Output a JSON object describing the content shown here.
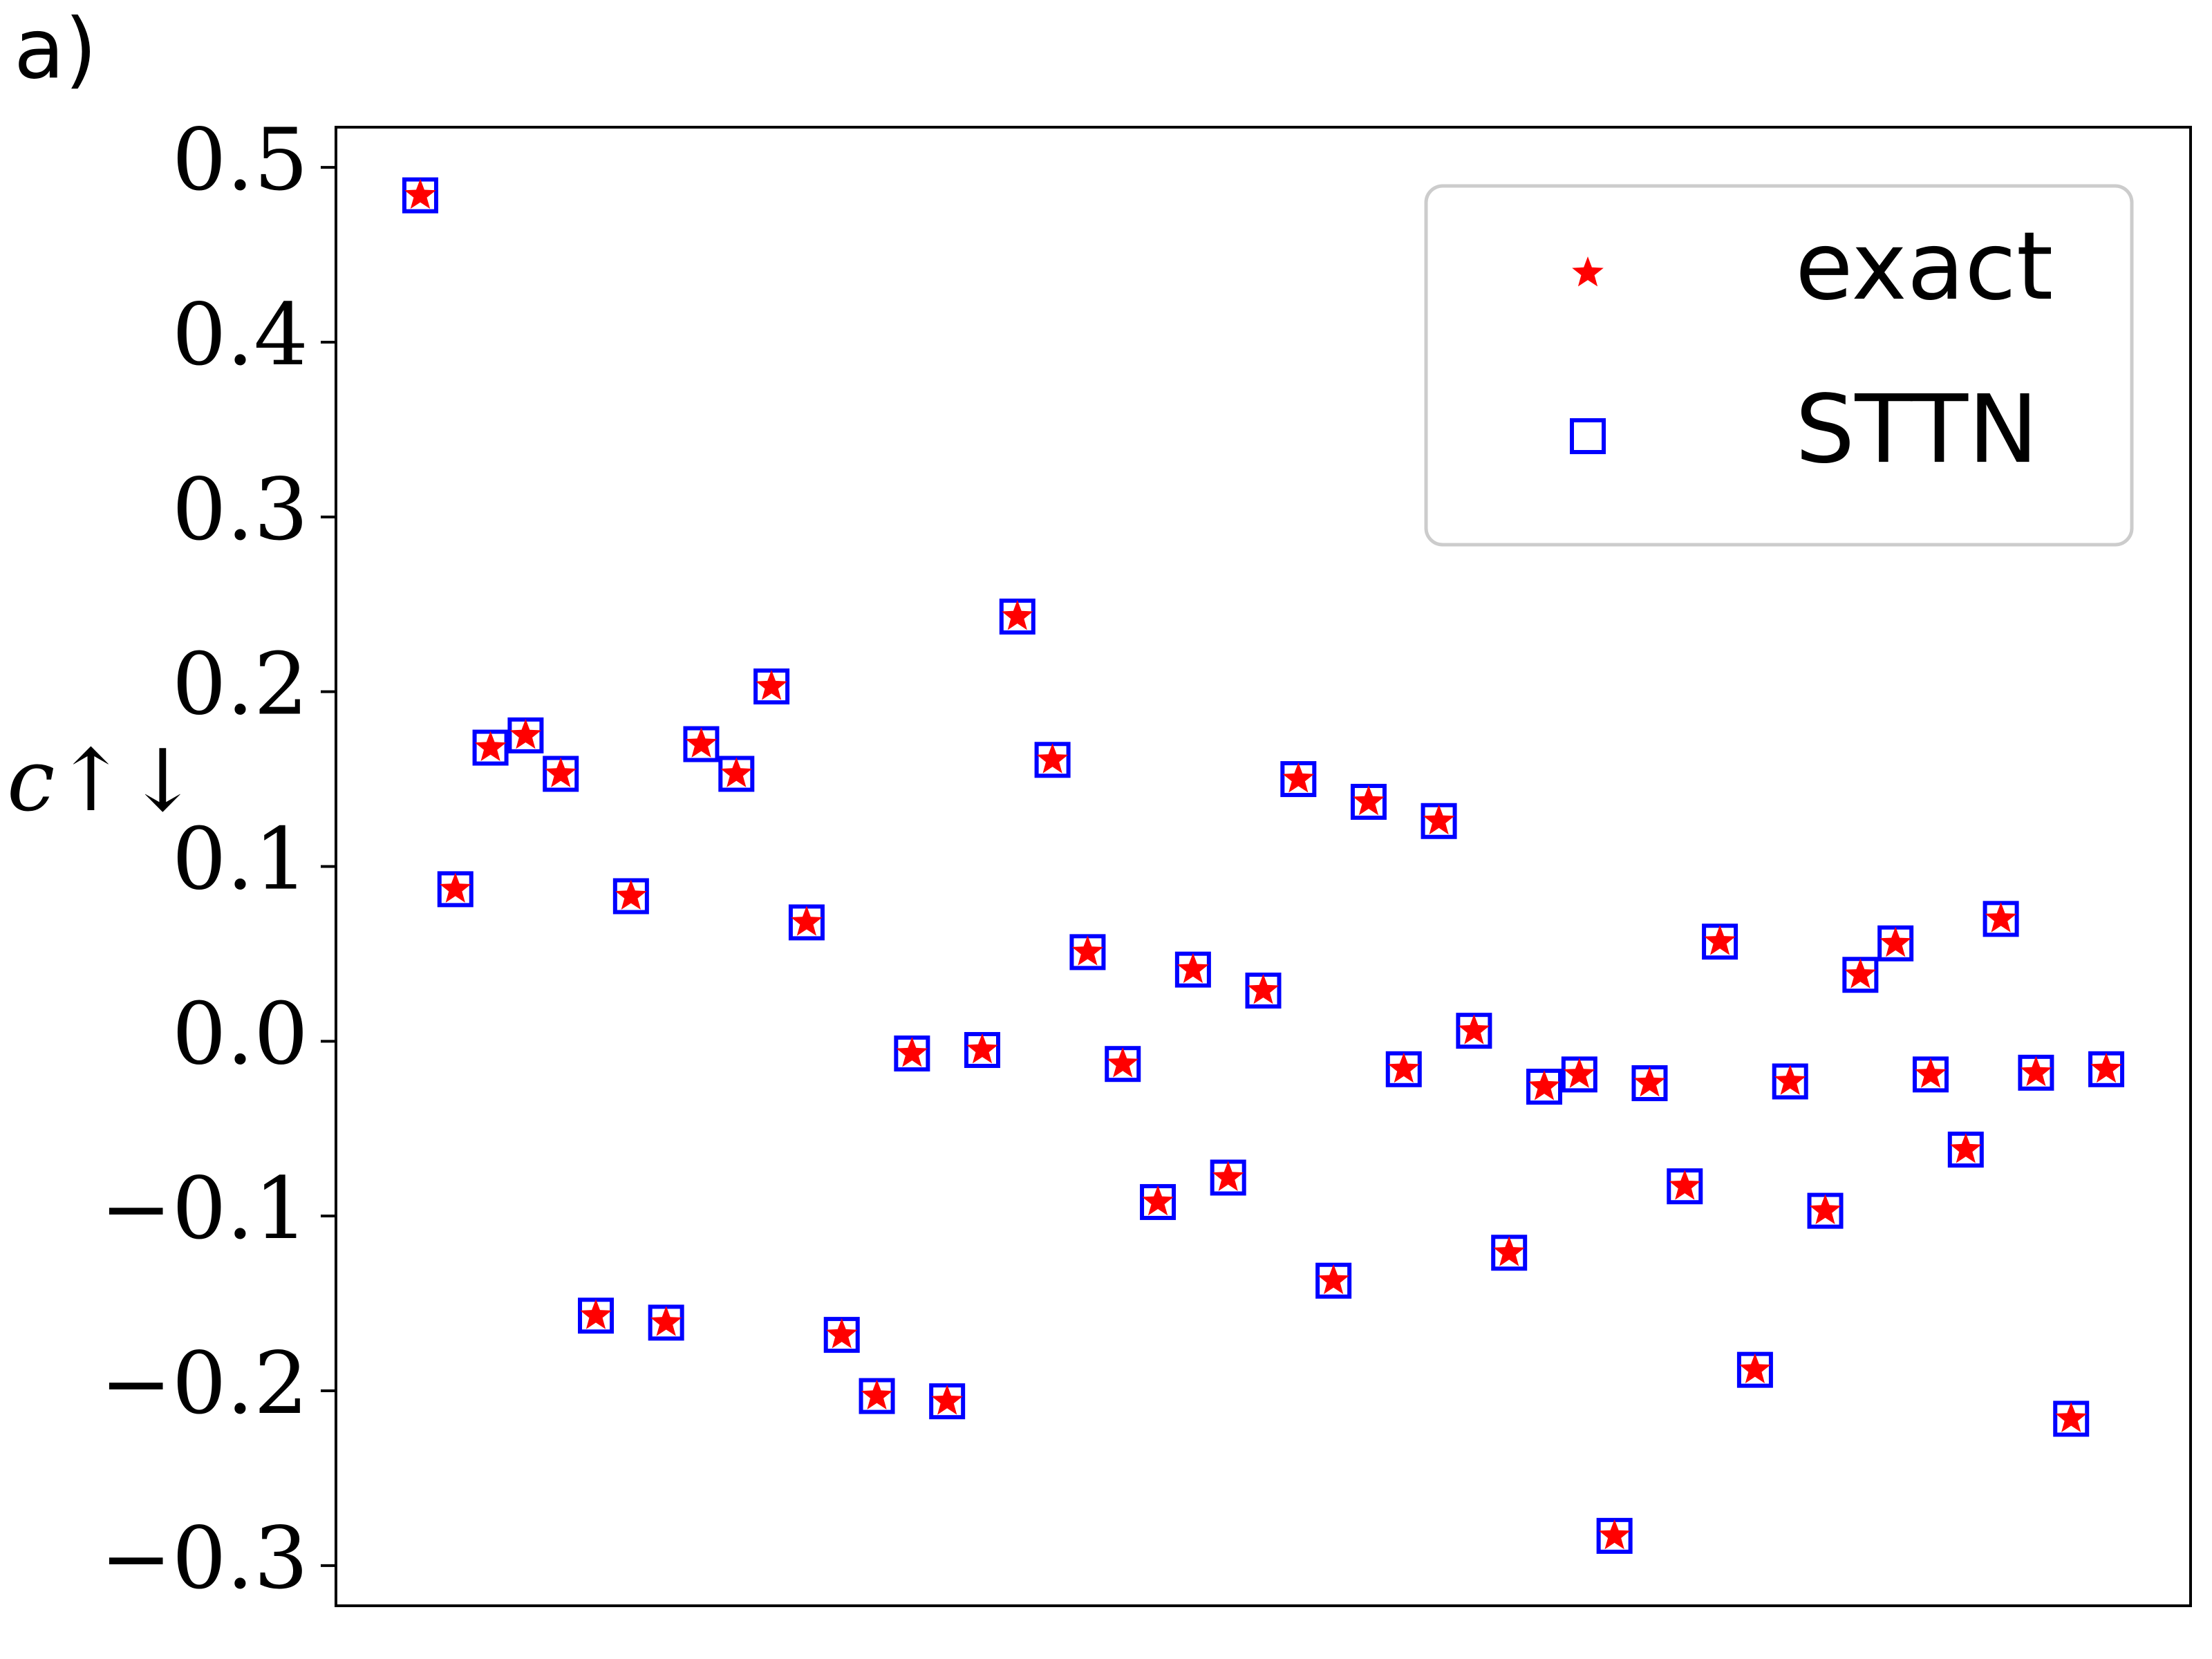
{
  "chart_data": {
    "type": "scatter",
    "panel_label": "a)",
    "ylabel": "c↑↓",
    "x": [
      0,
      1,
      2,
      3,
      4,
      5,
      6,
      7,
      8,
      9,
      10,
      11,
      12,
      13,
      14,
      15,
      16,
      17,
      18,
      19,
      20,
      21,
      22,
      23,
      24,
      25,
      26,
      27,
      28,
      29,
      30,
      31,
      32,
      33,
      34,
      35,
      36,
      37,
      38,
      39,
      40,
      41,
      42,
      43,
      44,
      45,
      46,
      47,
      48
    ],
    "series": [
      {
        "name": "exact",
        "color": "#ff0000",
        "marker": "star",
        "values": [
          0.484,
          0.087,
          0.168,
          0.175,
          0.153,
          -0.157,
          0.083,
          -0.161,
          0.17,
          0.153,
          0.203,
          0.068,
          -0.168,
          -0.203,
          -0.007,
          -0.206,
          -0.005,
          0.243,
          0.161,
          0.051,
          -0.013,
          -0.092,
          0.041,
          -0.078,
          0.029,
          0.15,
          -0.137,
          0.137,
          -0.016,
          0.126,
          0.006,
          -0.121,
          -0.026,
          -0.019,
          -0.283,
          -0.024,
          -0.083,
          0.057,
          -0.188,
          -0.023,
          -0.097,
          0.038,
          0.056,
          -0.019,
          -0.062,
          0.07,
          -0.018,
          -0.216,
          -0.016
        ]
      },
      {
        "name": "STTN",
        "color": "#0000ff",
        "marker": "square",
        "values": [
          0.484,
          0.087,
          0.168,
          0.175,
          0.153,
          -0.157,
          0.083,
          -0.161,
          0.17,
          0.153,
          0.203,
          0.068,
          -0.168,
          -0.203,
          -0.007,
          -0.206,
          -0.005,
          0.243,
          0.161,
          0.051,
          -0.013,
          -0.092,
          0.041,
          -0.078,
          0.029,
          0.15,
          -0.137,
          0.137,
          -0.016,
          0.126,
          0.006,
          -0.121,
          -0.026,
          -0.019,
          -0.283,
          -0.024,
          -0.083,
          0.057,
          -0.188,
          -0.023,
          -0.097,
          0.038,
          0.056,
          -0.019,
          -0.062,
          0.07,
          -0.018,
          -0.216,
          -0.016
        ]
      }
    ],
    "xlim": [
      -2.4,
      50.4
    ],
    "ylim": [
      -0.323,
      0.523
    ],
    "yticks": [
      {
        "value": -0.3,
        "label": "−0.3"
      },
      {
        "value": -0.2,
        "label": "−0.2"
      },
      {
        "value": -0.1,
        "label": "−0.1"
      },
      {
        "value": 0,
        "label": "0.0"
      },
      0.1,
      0.2,
      0.3,
      0.4,
      0.5
    ],
    "legend": "upper right",
    "grid": false
  }
}
